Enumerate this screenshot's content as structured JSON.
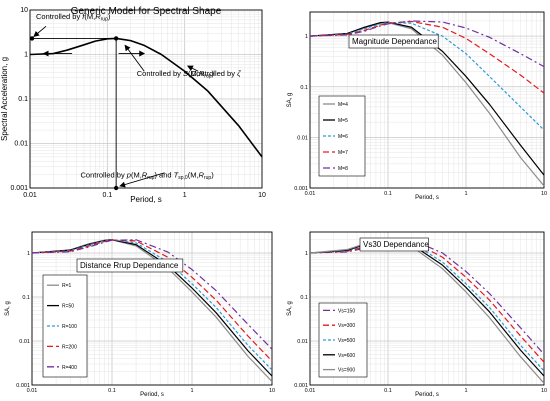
{
  "chart_data": [
    {
      "type": "line",
      "title": "Generic Model for Spectral Shape",
      "xlabel": "Period, s",
      "ylabel": "Spectral Acceleration, g",
      "xscale": "log",
      "yscale": "log",
      "xlim": [
        0.01,
        10
      ],
      "ylim": [
        0.001,
        10
      ],
      "xticks": [
        "0.01",
        "0.1",
        "1",
        "10"
      ],
      "yticks": [
        "0.001",
        "0.01",
        "0.1",
        "1",
        "10"
      ],
      "grid": true,
      "series": [
        {
          "color": "#000000",
          "width": 1.6,
          "x": [
            0.01,
            0.02,
            0.03,
            0.05,
            0.07,
            0.1,
            0.13,
            0.2,
            0.3,
            0.5,
            1,
            2,
            5,
            10
          ],
          "y": [
            1.0,
            1.05,
            1.25,
            1.65,
            2.0,
            2.25,
            2.3,
            2.05,
            1.6,
            1.0,
            0.42,
            0.15,
            0.025,
            0.005
          ]
        }
      ],
      "annotations": {
        "top": "Controlled by",
        "top_fn": "f",
        "mid": "Controlled by",
        "mid_fn": "S",
        "right": "Controlled by",
        "right_sym": "ζ",
        "bottom": "Controlled by",
        "bottom_fn": "p",
        "bottom_and": "and",
        "bottom_fn2": "T",
        "bottom_sub2": "sp,0",
        "arg_M": "M",
        "arg_R": "R",
        "arg_rup": "rup",
        "arg_open": "(",
        "arg_comma": ",",
        "arg_close": ")"
      }
    },
    {
      "type": "line",
      "title": "Magnitude Dependance",
      "xlabel": "Period, s",
      "ylabel": "SA, g",
      "xscale": "log",
      "yscale": "log",
      "xlim": [
        0.01,
        10
      ],
      "ylim": [
        0.001,
        3
      ],
      "xticks": [
        "0.01",
        "0.1",
        "1",
        "10"
      ],
      "yticks": [
        "0.001",
        "0.01",
        "0.1",
        "1"
      ],
      "grid": true,
      "legend": "left",
      "series": [
        {
          "name": "M=4",
          "color": "#8c8c8c",
          "dash": "",
          "x": [
            0.01,
            0.03,
            0.05,
            0.08,
            0.1,
            0.2,
            0.5,
            1,
            2,
            5,
            10
          ],
          "y": [
            1.0,
            1.12,
            1.45,
            1.8,
            1.85,
            1.4,
            0.42,
            0.12,
            0.03,
            0.004,
            0.0011
          ]
        },
        {
          "name": "M=5",
          "color": "#000000",
          "dash": "",
          "x": [
            0.01,
            0.03,
            0.05,
            0.08,
            0.1,
            0.2,
            0.5,
            1,
            2,
            5,
            10
          ],
          "y": [
            1.0,
            1.13,
            1.5,
            1.85,
            1.9,
            1.5,
            0.5,
            0.16,
            0.045,
            0.007,
            0.0018
          ]
        },
        {
          "name": "M=6",
          "color": "#2e9bd6",
          "dash": "3,2",
          "x": [
            0.01,
            0.03,
            0.05,
            0.08,
            0.1,
            0.2,
            0.5,
            1,
            2,
            5,
            10
          ],
          "y": [
            1.0,
            1.1,
            1.4,
            1.75,
            1.85,
            1.8,
            1.0,
            0.45,
            0.16,
            0.04,
            0.014
          ]
        },
        {
          "name": "M=7",
          "color": "#e41a1c",
          "dash": "6,3",
          "x": [
            0.01,
            0.03,
            0.05,
            0.08,
            0.1,
            0.2,
            0.5,
            1,
            2,
            5,
            10
          ],
          "y": [
            1.0,
            1.08,
            1.3,
            1.65,
            1.8,
            1.95,
            1.5,
            0.9,
            0.45,
            0.17,
            0.075
          ]
        },
        {
          "name": "M=8",
          "color": "#7030a0",
          "dash": "7,3,2,3",
          "x": [
            0.01,
            0.03,
            0.05,
            0.08,
            0.1,
            0.2,
            0.5,
            1,
            2,
            5,
            10
          ],
          "y": [
            1.0,
            1.06,
            1.25,
            1.6,
            1.75,
            2.0,
            1.9,
            1.45,
            0.95,
            0.45,
            0.25
          ]
        }
      ]
    },
    {
      "type": "line",
      "title": "Distance Rrup Dependance",
      "xlabel": "Period, s",
      "ylabel": "SA, g",
      "xscale": "log",
      "yscale": "log",
      "xlim": [
        0.01,
        10
      ],
      "ylim": [
        0.001,
        3
      ],
      "xticks": [
        "0.01",
        "0.1",
        "1",
        "10"
      ],
      "yticks": [
        "0.001",
        "0.01",
        "0.1",
        "1"
      ],
      "grid": true,
      "legend": "left",
      "series": [
        {
          "name": "R=1",
          "color": "#8c8c8c",
          "dash": "",
          "x": [
            0.01,
            0.03,
            0.05,
            0.08,
            0.1,
            0.2,
            0.5,
            1,
            2,
            5,
            10
          ],
          "y": [
            1.0,
            1.18,
            1.6,
            1.95,
            2.0,
            1.45,
            0.45,
            0.13,
            0.035,
            0.0045,
            0.0012
          ]
        },
        {
          "name": "R=50",
          "color": "#000000",
          "dash": "",
          "x": [
            0.01,
            0.03,
            0.05,
            0.08,
            0.1,
            0.2,
            0.5,
            1,
            2,
            5,
            10
          ],
          "y": [
            1.0,
            1.16,
            1.55,
            1.92,
            2.0,
            1.55,
            0.52,
            0.16,
            0.044,
            0.006,
            0.0016
          ]
        },
        {
          "name": "R=100",
          "color": "#2e9bd6",
          "dash": "3,2",
          "x": [
            0.01,
            0.03,
            0.05,
            0.08,
            0.1,
            0.2,
            0.5,
            1,
            2,
            5,
            10
          ],
          "y": [
            1.0,
            1.13,
            1.5,
            1.88,
            2.0,
            1.7,
            0.62,
            0.2,
            0.058,
            0.008,
            0.0022
          ]
        },
        {
          "name": "R=200",
          "color": "#e41a1c",
          "dash": "6,3",
          "x": [
            0.01,
            0.03,
            0.05,
            0.08,
            0.1,
            0.2,
            0.5,
            1,
            2,
            5,
            10
          ],
          "y": [
            1.0,
            1.1,
            1.42,
            1.82,
            1.98,
            1.88,
            0.8,
            0.28,
            0.085,
            0.013,
            0.0035
          ]
        },
        {
          "name": "R=400",
          "color": "#7030a0",
          "dash": "7,3,2,3",
          "x": [
            0.01,
            0.03,
            0.05,
            0.08,
            0.1,
            0.2,
            0.5,
            1,
            2,
            5,
            10
          ],
          "y": [
            1.0,
            1.07,
            1.35,
            1.75,
            1.95,
            2.0,
            1.05,
            0.42,
            0.14,
            0.024,
            0.0065
          ]
        }
      ]
    },
    {
      "type": "line",
      "title": "Vs30 Dependance",
      "xlabel": "Period, s",
      "ylabel": "SA, g",
      "xscale": "log",
      "yscale": "log",
      "xlim": [
        0.01,
        10
      ],
      "ylim": [
        0.001,
        3
      ],
      "xticks": [
        "0.01",
        "0.1",
        "1",
        "10"
      ],
      "yticks": [
        "0.001",
        "0.01",
        "0.1",
        "1"
      ],
      "grid": true,
      "legend": "left",
      "series": [
        {
          "name": "Vs=150",
          "color": "#7030a0",
          "dash": "7,3,2,3",
          "x": [
            0.01,
            0.03,
            0.05,
            0.08,
            0.1,
            0.2,
            0.5,
            1,
            2,
            5,
            10
          ],
          "y": [
            1.0,
            1.06,
            1.28,
            1.65,
            1.85,
            2.0,
            1.0,
            0.38,
            0.12,
            0.02,
            0.005
          ]
        },
        {
          "name": "Vs=300",
          "color": "#e41a1c",
          "dash": "6,3",
          "x": [
            0.01,
            0.03,
            0.05,
            0.08,
            0.1,
            0.2,
            0.5,
            1,
            2,
            5,
            10
          ],
          "y": [
            1.0,
            1.09,
            1.38,
            1.78,
            1.95,
            1.9,
            0.8,
            0.28,
            0.085,
            0.013,
            0.0033
          ]
        },
        {
          "name": "Vs=500",
          "color": "#2e9bd6",
          "dash": "3,2",
          "x": [
            0.01,
            0.03,
            0.05,
            0.08,
            0.1,
            0.2,
            0.5,
            1,
            2,
            5,
            10
          ],
          "y": [
            1.0,
            1.12,
            1.48,
            1.88,
            2.0,
            1.72,
            0.62,
            0.2,
            0.058,
            0.008,
            0.0021
          ]
        },
        {
          "name": "Vs=600",
          "color": "#000000",
          "dash": "",
          "x": [
            0.01,
            0.03,
            0.05,
            0.08,
            0.1,
            0.2,
            0.5,
            1,
            2,
            5,
            10
          ],
          "y": [
            1.0,
            1.15,
            1.55,
            1.92,
            2.0,
            1.58,
            0.53,
            0.165,
            0.046,
            0.0062,
            0.0016
          ]
        },
        {
          "name": "Vs=900",
          "color": "#8c8c8c",
          "dash": "",
          "x": [
            0.01,
            0.03,
            0.05,
            0.08,
            0.1,
            0.2,
            0.5,
            1,
            2,
            5,
            10
          ],
          "y": [
            1.0,
            1.2,
            1.62,
            1.98,
            2.0,
            1.42,
            0.44,
            0.13,
            0.034,
            0.0044,
            0.0011
          ]
        }
      ]
    }
  ]
}
